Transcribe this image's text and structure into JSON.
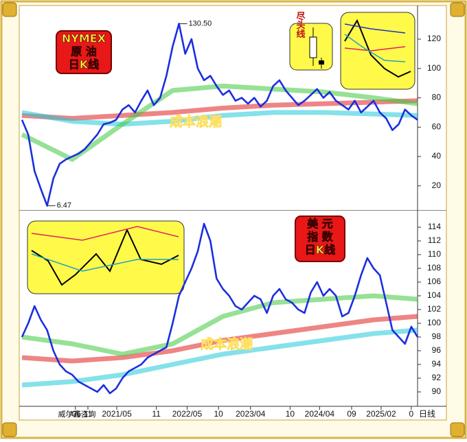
{
  "chart_data": [
    {
      "type": "line",
      "title": [
        "NYMEX",
        "原 油",
        "日K线"
      ],
      "inset_label": "尽头线",
      "x": [
        0,
        1,
        2,
        3,
        4,
        5,
        6,
        7,
        8,
        9,
        10,
        11,
        12,
        13,
        14,
        15,
        16,
        17,
        18,
        19,
        20,
        21,
        22,
        23,
        24,
        25,
        26,
        27,
        28,
        29,
        30,
        31,
        32,
        33,
        34,
        35,
        36,
        37,
        38,
        39,
        40,
        41,
        42,
        43,
        44,
        45,
        46,
        47,
        48,
        49,
        50,
        51,
        52,
        53,
        54,
        55,
        56,
        57,
        58,
        59,
        60,
        61,
        62,
        63
      ],
      "xlim": [
        0,
        63
      ],
      "ylim": [
        4,
        142
      ],
      "yticks": [
        20,
        40,
        60,
        80,
        100,
        120
      ],
      "annotations": [
        {
          "text": "130.50",
          "x": 25,
          "y": 130.5
        },
        {
          "text": "6.47",
          "x": 4,
          "y": 6.47
        },
        {
          "text": "成本浪潮"
        }
      ],
      "series": [
        {
          "name": "MA-red",
          "color": "#e02020",
          "x": [
            0,
            8,
            16,
            24,
            32,
            40,
            48,
            56,
            63
          ],
          "values": [
            68,
            66,
            68,
            70,
            73,
            75,
            76,
            77,
            78
          ]
        },
        {
          "name": "MA-cyan",
          "color": "#20c8d8",
          "x": [
            0,
            8,
            16,
            24,
            32,
            40,
            48,
            56,
            63
          ],
          "values": [
            70,
            64,
            62,
            64,
            68,
            70,
            70,
            69,
            68
          ]
        },
        {
          "name": "MA-green",
          "color": "#40c840",
          "x": [
            0,
            8,
            16,
            24,
            32,
            40,
            48,
            56,
            63
          ],
          "values": [
            55,
            38,
            62,
            85,
            88,
            86,
            84,
            80,
            76
          ]
        },
        {
          "name": "price",
          "color": "#1a2ee0",
          "values": [
            65,
            55,
            30,
            18,
            6.47,
            25,
            35,
            38,
            40,
            42,
            45,
            50,
            55,
            62,
            63,
            65,
            72,
            75,
            70,
            78,
            85,
            75,
            80,
            95,
            115,
            130.5,
            110,
            120,
            100,
            92,
            95,
            88,
            82,
            85,
            78,
            80,
            76,
            80,
            74,
            78,
            88,
            92,
            85,
            80,
            75,
            78,
            82,
            86,
            80,
            84,
            78,
            75,
            72,
            78,
            70,
            74,
            78,
            70,
            66,
            58,
            62,
            72,
            68,
            65
          ]
        }
      ]
    },
    {
      "type": "line",
      "title": [
        "美 元",
        "指 数",
        "日K线"
      ],
      "x": [
        0,
        1,
        2,
        3,
        4,
        5,
        6,
        7,
        8,
        9,
        10,
        11,
        12,
        13,
        14,
        15,
        16,
        17,
        18,
        19,
        20,
        21,
        22,
        23,
        24,
        25,
        26,
        27,
        28,
        29,
        30,
        31,
        32,
        33,
        34,
        35,
        36,
        37,
        38,
        39,
        40,
        41,
        42,
        43,
        44,
        45,
        46,
        47,
        48,
        49,
        50,
        51,
        52,
        53,
        54,
        55,
        56,
        57,
        58,
        59,
        60,
        61,
        62,
        63
      ],
      "xlim": [
        0,
        63
      ],
      "ylim": [
        88.1,
        116.3
      ],
      "yticks": [
        90,
        92,
        94,
        96,
        98,
        100,
        102,
        104,
        106,
        108,
        110,
        112,
        114
      ],
      "xticks": [
        {
          "value": 8.5,
          "label": "/06"
        },
        {
          "value": 10.5,
          "label": "11"
        },
        {
          "value": 15.1,
          "label": "2021/05"
        },
        {
          "value": 21.4,
          "label": "11"
        },
        {
          "value": 26.3,
          "label": "2022/05"
        },
        {
          "value": 31.3,
          "label": "10"
        },
        {
          "value": 36.4,
          "label": "2023/04"
        },
        {
          "value": 42.7,
          "label": "10"
        },
        {
          "value": 47.4,
          "label": "2024/04"
        },
        {
          "value": 52.5,
          "label": "09"
        },
        {
          "value": 57.2,
          "label": "2025/02"
        },
        {
          "value": 62,
          "label": "0"
        }
      ],
      "annotations": [
        {
          "text": "成本浪潮"
        }
      ],
      "series": [
        {
          "name": "MA-cyan",
          "color": "#20c8d8",
          "x": [
            0,
            8,
            16,
            24,
            32,
            40,
            48,
            56,
            63
          ],
          "values": [
            91,
            91.5,
            92.5,
            94,
            95.5,
            96.5,
            97.5,
            98.5,
            99
          ]
        },
        {
          "name": "MA-red",
          "color": "#e02020",
          "x": [
            0,
            8,
            16,
            24,
            32,
            40,
            48,
            56,
            63
          ],
          "values": [
            95,
            94.5,
            95,
            96,
            97.5,
            98.5,
            99.5,
            100.5,
            101
          ]
        },
        {
          "name": "MA-green",
          "color": "#40c840",
          "x": [
            0,
            8,
            16,
            24,
            32,
            40,
            48,
            56,
            63
          ],
          "values": [
            98,
            97,
            95.5,
            97,
            101,
            103,
            103.5,
            104,
            103.5
          ]
        },
        {
          "name": "price",
          "color": "#1a2ee0",
          "values": [
            98,
            100,
            102.5,
            100.5,
            99,
            96,
            94,
            93,
            92.5,
            91.5,
            91,
            90.5,
            90,
            91,
            89.8,
            90.5,
            92,
            93,
            93.5,
            94,
            95,
            95.5,
            96,
            96.5,
            100,
            104,
            106,
            108,
            110.5,
            114.5,
            112,
            106.5,
            105,
            104,
            102.5,
            102,
            103,
            104,
            103.5,
            101.5,
            104,
            105,
            103.5,
            103,
            102,
            101.5,
            104.5,
            106,
            104,
            105,
            104,
            101,
            101.5,
            104,
            107,
            109.5,
            108,
            107,
            103,
            99,
            98,
            97,
            99.5,
            98
          ]
        }
      ]
    }
  ],
  "footer": {
    "watermark": "威尔鑫咨询",
    "period": "日线"
  }
}
